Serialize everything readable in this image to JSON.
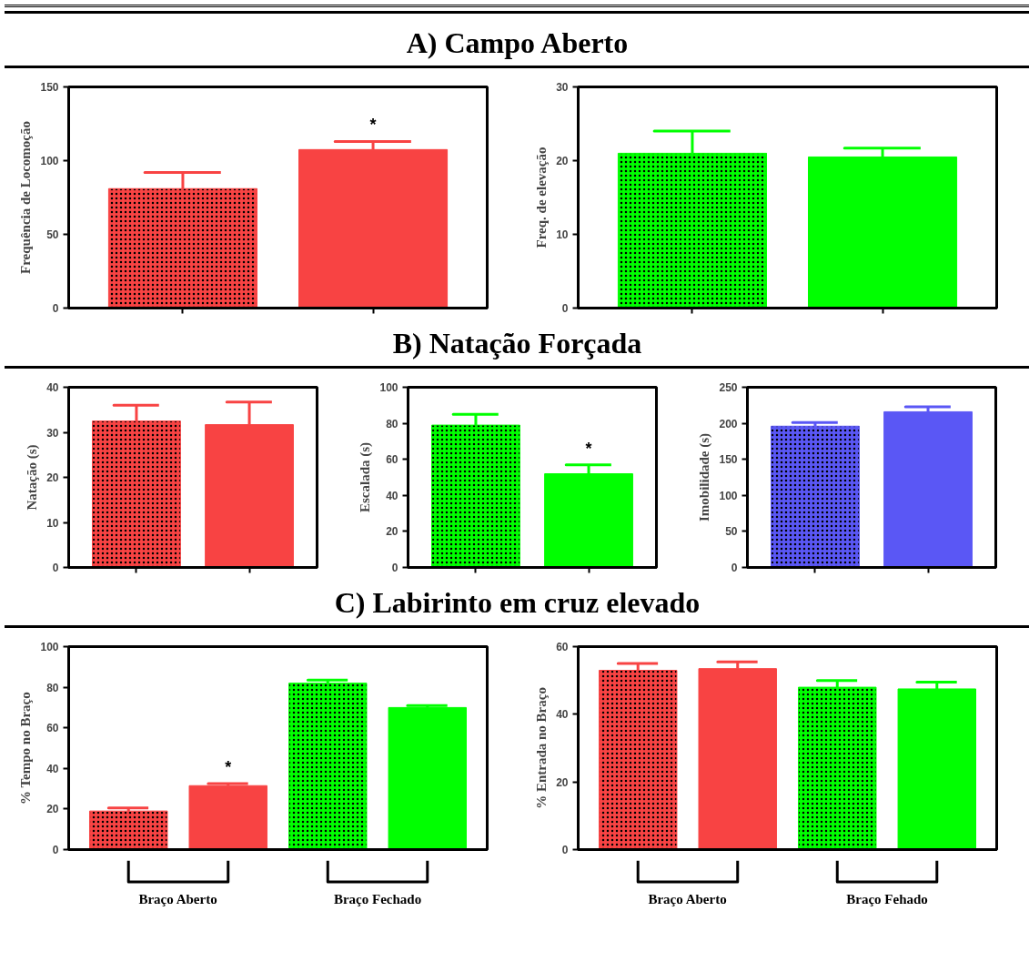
{
  "chart_data": [
    {
      "type": "bar",
      "title": "A) Campo Aberto",
      "ylabel": "Frequência de Locomoção",
      "categories": [
        null,
        null
      ],
      "values": [
        81,
        107.5
      ],
      "errors": [
        [
          81,
          92
        ],
        [
          107.5,
          113
        ]
      ],
      "value_labels": [
        null,
        "*"
      ],
      "colors": [
        "#f84343",
        "#f84343"
      ],
      "ylim": [
        0,
        150
      ],
      "yticks": [
        0,
        50,
        100,
        150
      ]
    },
    {
      "type": "bar",
      "ylabel": "Freq. de elevação",
      "categories": [
        null,
        null
      ],
      "values": [
        21,
        20.5
      ],
      "errors": [
        [
          21,
          24
        ],
        [
          20.5,
          21.7
        ]
      ],
      "colors": [
        "#00ff00",
        "#00ff00"
      ],
      "ylim": [
        0,
        30
      ],
      "yticks": [
        0,
        10,
        20,
        30
      ]
    },
    {
      "type": "bar",
      "ylabel": "Natação (s)",
      "categories": [
        null,
        null
      ],
      "values": [
        32.5,
        31.7
      ],
      "errors": [
        [
          32.5,
          36
        ],
        [
          31.7,
          36.7
        ]
      ],
      "colors": [
        "#f84343",
        "#f84343"
      ],
      "ylim": [
        0,
        40
      ],
      "yticks": [
        0,
        10,
        20,
        30,
        40
      ]
    },
    {
      "type": "bar",
      "title": "B) Natação Forçada",
      "ylabel": "Escalada (s)",
      "categories": [
        null,
        null
      ],
      "values": [
        79,
        52
      ],
      "errors": [
        [
          79,
          85
        ],
        [
          52,
          57
        ]
      ],
      "value_labels": [
        null,
        "*"
      ],
      "colors": [
        "#00ff00",
        "#00ff00"
      ],
      "ylim": [
        0,
        100
      ],
      "yticks": [
        0,
        20,
        40,
        60,
        80,
        100
      ]
    },
    {
      "type": "bar",
      "ylabel": "Imobilidade (s)",
      "categories": [
        null,
        null
      ],
      "values": [
        196,
        216
      ],
      "errors": [
        [
          196,
          201
        ],
        [
          216,
          223
        ]
      ],
      "colors": [
        "#5a57f5",
        "#5a57f5"
      ],
      "ylim": [
        0,
        250
      ],
      "yticks": [
        0,
        50,
        100,
        150,
        200,
        250
      ]
    },
    {
      "type": "bar",
      "title": "C) Labirinto em cruz elevado",
      "ylabel": "% Tempo no Braço",
      "categories": [
        null,
        null,
        null,
        null
      ],
      "values": [
        19,
        31.5,
        82,
        70
      ],
      "errors": [
        [
          19,
          20.5
        ],
        [
          31.5,
          32.5
        ],
        [
          82,
          83.5
        ],
        [
          70,
          71
        ]
      ],
      "value_labels": [
        null,
        "*",
        null,
        null
      ],
      "colors": [
        "#f84343",
        "#f84343",
        "#00ff00",
        "#00ff00"
      ],
      "ylim": [
        0,
        100
      ],
      "yticks": [
        0,
        20,
        40,
        60,
        80,
        100
      ],
      "annotations": [
        "Braço Aberto",
        "Braço Fechado"
      ]
    },
    {
      "type": "bar",
      "ylabel": "% Entrada no Braço",
      "categories": [
        null,
        null,
        null,
        null
      ],
      "values": [
        53,
        53.5,
        48,
        47.5
      ],
      "errors": [
        [
          53,
          55
        ],
        [
          53.5,
          55.5
        ],
        [
          48,
          50
        ],
        [
          47.5,
          49.5
        ]
      ],
      "colors": [
        "#f84343",
        "#f84343",
        "#00ff00",
        "#00ff00"
      ],
      "ylim": [
        0,
        60
      ],
      "yticks": [
        0,
        20,
        40,
        60
      ],
      "annotations": [
        "Braço Aberto",
        "Braço Fehado"
      ]
    }
  ]
}
